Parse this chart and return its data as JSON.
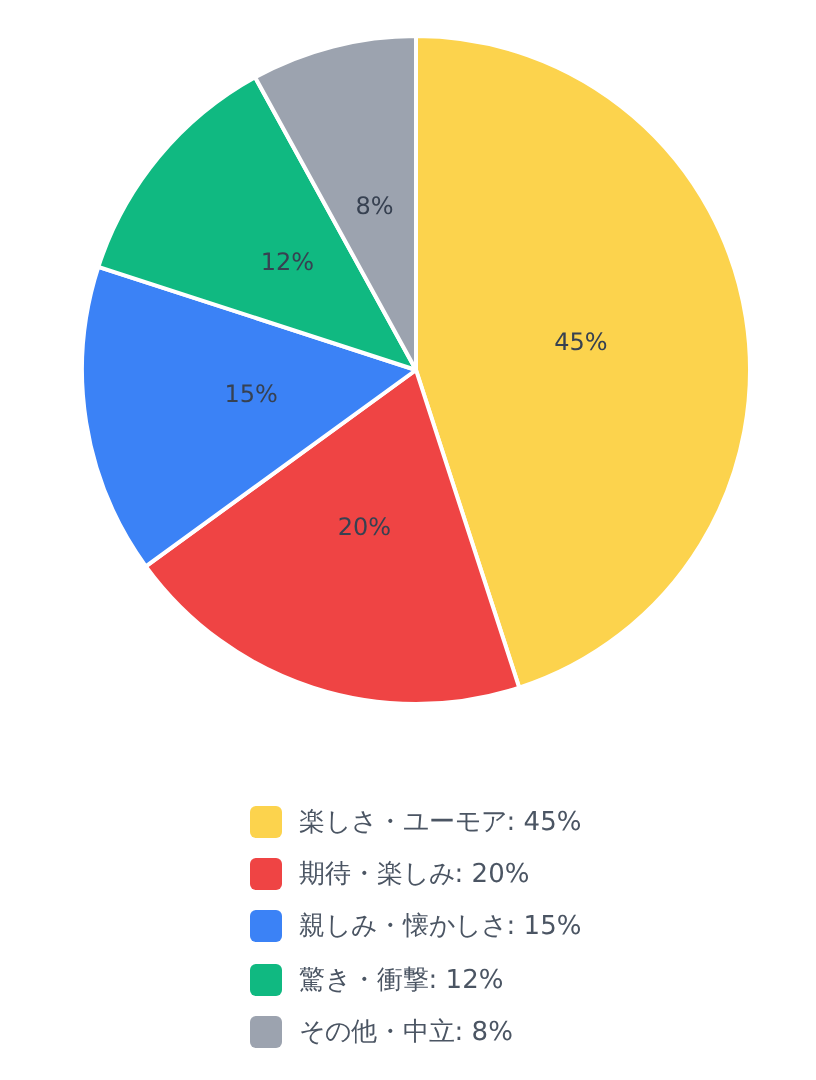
{
  "chart_data": {
    "type": "pie",
    "categories": [
      "楽しさ・ユーモア: 45%",
      "期待・楽しみ: 20%",
      "親しみ・懐かしさ: 15%",
      "驚き・衝撃: 12%",
      "その他・中立: 8%"
    ],
    "values": [
      45,
      20,
      15,
      12,
      8
    ],
    "value_labels": [
      "45%",
      "20%",
      "15%",
      "12%",
      "8%"
    ],
    "colors": [
      "#fcd34d",
      "#ef4444",
      "#3b82f6",
      "#10b981",
      "#9ca3af"
    ],
    "legend": "bottom"
  }
}
